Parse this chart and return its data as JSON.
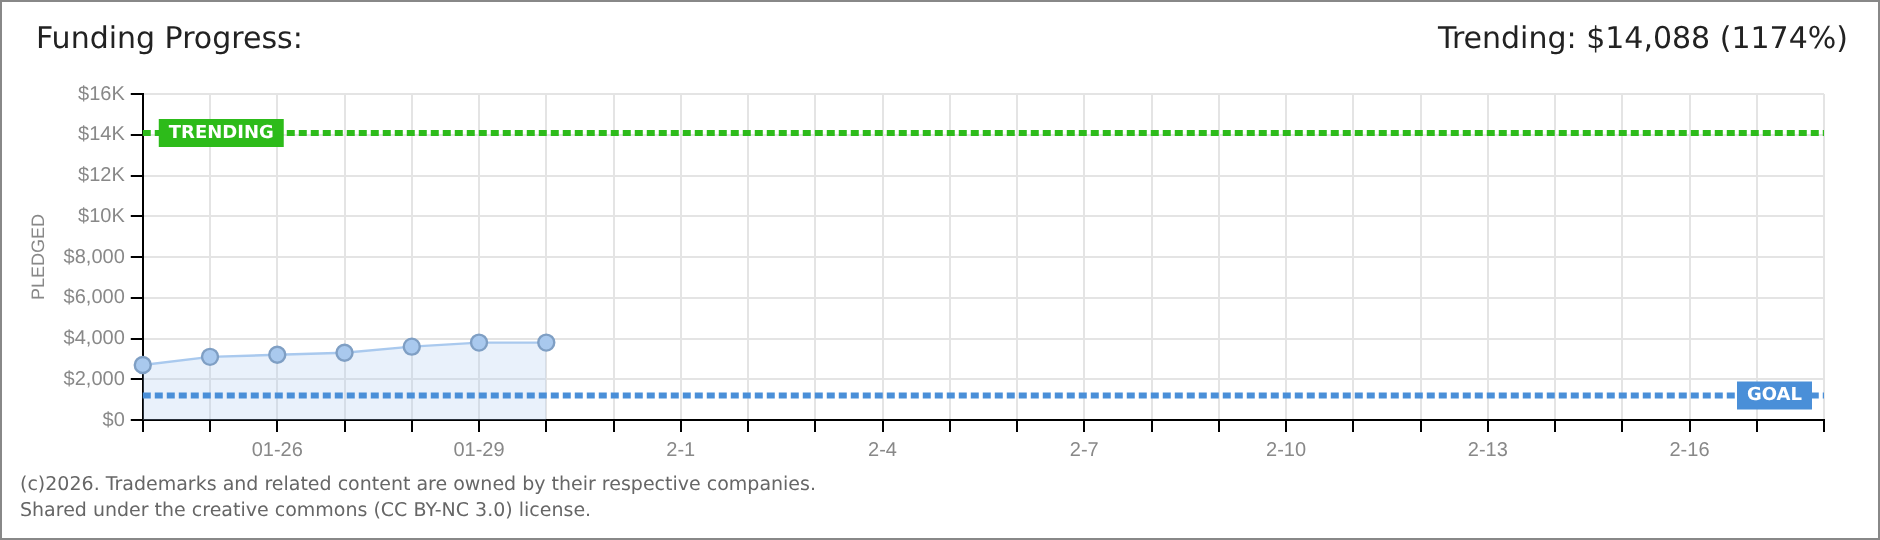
{
  "chart_data": {
    "type": "area",
    "title": "Funding Progress:",
    "ylabel": "PLEDGED",
    "annotations": [
      "Trending: $14,088 (1174%)",
      "(c)2026. Trademarks and related content are owned by their respective companies.",
      "Shared under the creative commons (CC BY-NC 3.0) license."
    ],
    "categories": [
      null,
      null,
      "01-26",
      null,
      null,
      "01-29",
      null,
      null,
      "2-1",
      null,
      null,
      "2-4",
      null,
      null,
      "2-7",
      null,
      null,
      "2-10",
      null,
      null,
      "2-13",
      null,
      null,
      "2-16",
      null,
      null
    ],
    "series": [
      {
        "color": "#a9c9ee",
        "values": [
          2700,
          3100,
          3200,
          3300,
          3600,
          3800,
          3800,
          null,
          null,
          null,
          null,
          null,
          null,
          null,
          null,
          null,
          null,
          null,
          null,
          null,
          null,
          null,
          null,
          null,
          null,
          null
        ]
      }
    ],
    "ylim": [
      0,
      16000
    ],
    "yticks": [
      {
        "value": 0,
        "label": "$0"
      },
      {
        "value": 2000,
        "label": "$2,000"
      },
      {
        "value": 4000,
        "label": "$4,000"
      },
      {
        "value": 6000,
        "label": "$6,000"
      },
      {
        "value": 8000,
        "label": "$8,000"
      },
      {
        "value": 10000,
        "label": "$10K"
      },
      {
        "value": 12000,
        "label": "$12K"
      },
      {
        "value": 14000,
        "label": "$14K"
      },
      {
        "value": 16000,
        "label": "$16K"
      }
    ],
    "ref_lines": [
      {
        "axis": "y",
        "value": 14088,
        "label": "TRENDING",
        "color": "#2dbb1a",
        "line_style": "dashed"
      },
      {
        "axis": "y",
        "value": 1200,
        "label": "GOAL",
        "color": "#4a8fd8",
        "line_style": "dashed"
      }
    ],
    "grid": true,
    "marker": "circle",
    "legend": false
  }
}
